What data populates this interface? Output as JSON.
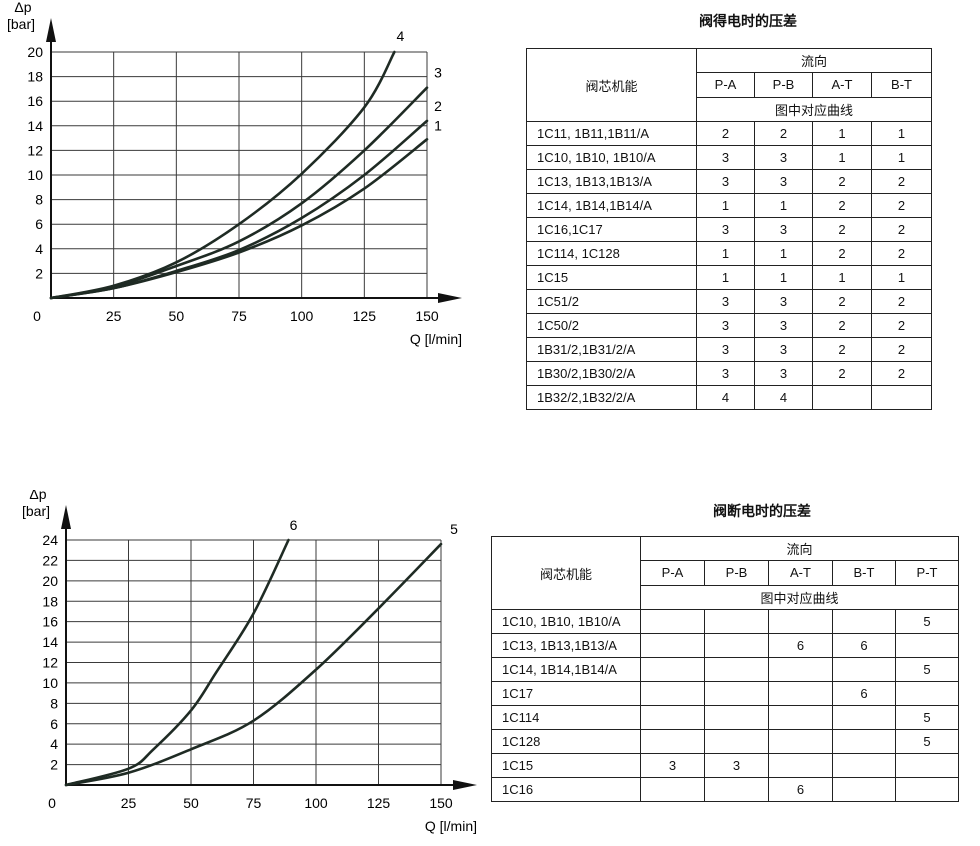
{
  "chart_data": [
    {
      "type": "line",
      "ylabel": "Δp",
      "yunit": "[bar]",
      "xlabel": "Q [l/min]",
      "xlim": [
        0,
        150
      ],
      "ylim": [
        0,
        20
      ],
      "xticks": [
        0,
        25,
        50,
        75,
        100,
        125,
        150
      ],
      "yticks": [
        2,
        4,
        6,
        8,
        10,
        12,
        14,
        16,
        18,
        20
      ],
      "grid": true,
      "series": [
        {
          "name": "1",
          "x": [
            0,
            25,
            50,
            75,
            100,
            125,
            150
          ],
          "y": [
            0,
            0.8,
            2.1,
            3.7,
            5.9,
            8.9,
            12.9
          ]
        },
        {
          "name": "2",
          "x": [
            0,
            25,
            50,
            75,
            100,
            125,
            150
          ],
          "y": [
            0,
            0.8,
            2.2,
            3.9,
            6.5,
            10.0,
            14.4
          ]
        },
        {
          "name": "3",
          "x": [
            0,
            25,
            50,
            75,
            100,
            125,
            150
          ],
          "y": [
            0,
            0.9,
            2.6,
            4.6,
            7.7,
            12.0,
            17.1
          ]
        },
        {
          "name": "4",
          "x": [
            0,
            25,
            50,
            75,
            100,
            125,
            137
          ],
          "y": [
            0,
            1.0,
            2.9,
            6.0,
            10.1,
            15.5,
            20.0
          ]
        }
      ]
    },
    {
      "type": "line",
      "ylabel": "Δp",
      "yunit": "[bar]",
      "xlabel": "Q [l/min]",
      "xlim": [
        0,
        150
      ],
      "ylim": [
        0,
        24
      ],
      "xticks": [
        0,
        25,
        50,
        75,
        100,
        125,
        150
      ],
      "yticks": [
        2,
        4,
        6,
        8,
        10,
        12,
        14,
        16,
        18,
        20,
        22,
        24
      ],
      "grid": true,
      "series": [
        {
          "name": "5",
          "x": [
            0,
            25,
            50,
            75,
            100,
            125,
            150
          ],
          "y": [
            0,
            1.2,
            3.5,
            6.3,
            11.3,
            17.3,
            23.6
          ]
        },
        {
          "name": "6",
          "x": [
            0,
            25,
            35,
            50,
            60,
            75,
            89
          ],
          "y": [
            0,
            1.6,
            3.5,
            7.3,
            11.0,
            16.8,
            24.0
          ]
        }
      ]
    }
  ],
  "table1": {
    "title": "阀得电时的压差",
    "corner": "阀芯机能",
    "flow": "流向",
    "curve_label": "图中对应曲线",
    "columns": [
      "P-A",
      "P-B",
      "A-T",
      "B-T"
    ],
    "rows": [
      {
        "label": "1C11, 1B11,1B11/A",
        "cells": [
          "2",
          "2",
          "1",
          "1"
        ]
      },
      {
        "label": "1C10,   1B10, 1B10/A",
        "cells": [
          "3",
          "3",
          "1",
          "1"
        ]
      },
      {
        "label": "1C13, 1B13,1B13/A",
        "cells": [
          "3",
          "3",
          "2",
          "2"
        ]
      },
      {
        "label": "1C14, 1B14,1B14/A",
        "cells": [
          "1",
          "1",
          "2",
          "2"
        ]
      },
      {
        "label": "1C16,1C17",
        "cells": [
          "3",
          "3",
          "2",
          "2"
        ]
      },
      {
        "label": "1C114, 1C128",
        "cells": [
          "1",
          "1",
          "2",
          "2"
        ]
      },
      {
        "label": "1C15",
        "cells": [
          "1",
          "1",
          "1",
          "1"
        ]
      },
      {
        "label": "1C51/2",
        "cells": [
          "3",
          "3",
          "2",
          "2"
        ]
      },
      {
        "label": "1C50/2",
        "cells": [
          "3",
          "3",
          "2",
          "2"
        ]
      },
      {
        "label": "1B31/2,1B31/2/A",
        "cells": [
          "3",
          "3",
          "2",
          "2"
        ]
      },
      {
        "label": "1B30/2,1B30/2/A",
        "cells": [
          "3",
          "3",
          "2",
          "2"
        ]
      },
      {
        "label": "1B32/2,1B32/2/A",
        "cells": [
          "4",
          "4",
          "",
          ""
        ]
      }
    ]
  },
  "table2": {
    "title": "阀断电时的压差",
    "corner": "阀芯机能",
    "flow": "流向",
    "curve_label": "图中对应曲线",
    "columns": [
      "P-A",
      "P-B",
      "A-T",
      "B-T",
      "P-T"
    ],
    "rows": [
      {
        "label": "1C10, 1B10, 1B10/A",
        "cells": [
          "",
          "",
          "",
          "",
          "5"
        ]
      },
      {
        "label": "1C13, 1B13,1B13/A",
        "cells": [
          "",
          "",
          "6",
          "6",
          ""
        ]
      },
      {
        "label": "1C14, 1B14,1B14/A",
        "cells": [
          "",
          "",
          "",
          "",
          "5"
        ]
      },
      {
        "label": "1C17",
        "cells": [
          "",
          "",
          "",
          "6",
          ""
        ]
      },
      {
        "label": "1C114",
        "cells": [
          "",
          "",
          "",
          "",
          "5"
        ]
      },
      {
        "label": "1C128",
        "cells": [
          "",
          "",
          "",
          "",
          "5"
        ]
      },
      {
        "label": "1C15",
        "cells": [
          "3",
          "3",
          "",
          "",
          ""
        ]
      },
      {
        "label": "1C16",
        "cells": [
          "",
          "",
          "6",
          "",
          ""
        ]
      }
    ]
  }
}
